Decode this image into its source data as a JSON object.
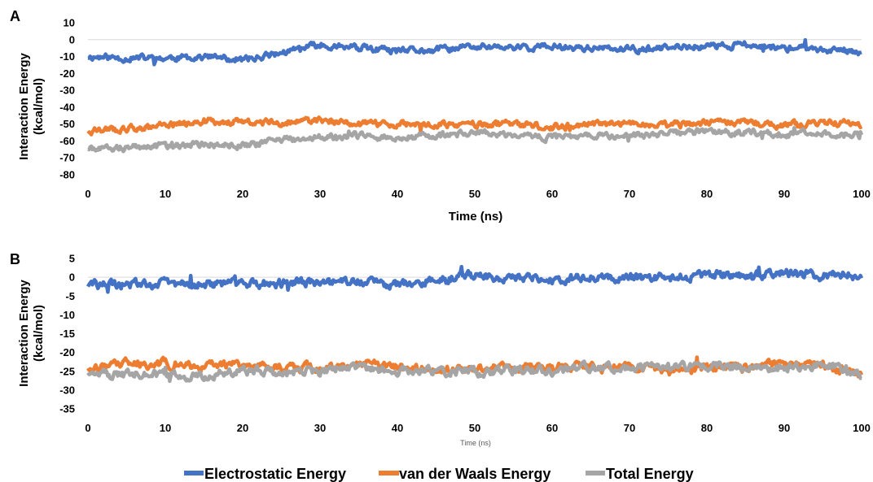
{
  "chart_data": [
    {
      "type": "line",
      "panel_label": "A",
      "xlabel": "Time (ns)",
      "ylabel": "Interaction Energy (kcal/mol)",
      "ylabel_lines": [
        "Interaction Energy",
        "(kcal/mol)"
      ],
      "xlim": [
        0,
        100
      ],
      "ylim": [
        -80,
        10
      ],
      "xticks": [
        0,
        10,
        20,
        30,
        40,
        50,
        60,
        70,
        80,
        90,
        100
      ],
      "yticks": [
        10,
        0,
        -10,
        -20,
        -30,
        -40,
        -50,
        -60,
        -70,
        -80
      ],
      "grid": false,
      "zero_line": true,
      "series": [
        {
          "name": "Electrostatic Energy",
          "color": "#4472C4",
          "x": [
            0,
            5,
            10,
            15,
            20,
            25,
            30,
            35,
            40,
            45,
            50,
            55,
            60,
            65,
            70,
            75,
            80,
            85,
            90,
            95,
            100
          ],
          "values": [
            -10,
            -11,
            -11,
            -10,
            -12,
            -8,
            -3,
            -5,
            -7,
            -6,
            -4,
            -5,
            -4,
            -5,
            -6,
            -5,
            -4,
            -3,
            -5,
            -6,
            -7
          ]
        },
        {
          "name": "van der Waals Energy",
          "color": "#ED7D31",
          "x": [
            0,
            5,
            10,
            15,
            20,
            25,
            30,
            35,
            40,
            45,
            50,
            55,
            60,
            65,
            70,
            75,
            80,
            85,
            90,
            95,
            100
          ],
          "values": [
            -54,
            -53,
            -51,
            -48,
            -49,
            -49,
            -48,
            -50,
            -50,
            -51,
            -50,
            -50,
            -52,
            -50,
            -50,
            -51,
            -49,
            -49,
            -51,
            -49,
            -50
          ]
        },
        {
          "name": "Total Energy",
          "color": "#A5A5A5",
          "x": [
            0,
            5,
            10,
            15,
            20,
            25,
            30,
            35,
            40,
            45,
            50,
            55,
            60,
            65,
            70,
            75,
            80,
            85,
            90,
            95,
            100
          ],
          "values": [
            -65,
            -64,
            -63,
            -62,
            -63,
            -59,
            -58,
            -57,
            -58,
            -57,
            -55,
            -57,
            -58,
            -56,
            -57,
            -56,
            -54,
            -55,
            -56,
            -55,
            -57
          ]
        }
      ]
    },
    {
      "type": "line",
      "panel_label": "B",
      "xlabel": "Time (ns)",
      "ylabel": "Interaction Energy (kcal/mol)",
      "ylabel_lines": [
        "Interaction Energy",
        "(kcal/mol)"
      ],
      "xlim": [
        0,
        100
      ],
      "ylim": [
        -35,
        5
      ],
      "xticks": [
        0,
        10,
        20,
        30,
        40,
        50,
        60,
        70,
        80,
        90,
        100
      ],
      "yticks": [
        5,
        0,
        -5,
        -10,
        -15,
        -20,
        -25,
        -30,
        -35
      ],
      "grid": false,
      "zero_line": true,
      "series": [
        {
          "name": "Electrostatic Energy",
          "color": "#4472C4",
          "x": [
            0,
            5,
            10,
            15,
            20,
            25,
            30,
            35,
            40,
            45,
            50,
            55,
            60,
            65,
            70,
            75,
            80,
            85,
            90,
            95,
            100
          ],
          "values": [
            -2,
            -2,
            -1.5,
            -2,
            -1.5,
            -1.5,
            -1.5,
            -1,
            -2,
            -0.5,
            0.5,
            -0.5,
            -0.5,
            0,
            0,
            0,
            0.5,
            0.5,
            1,
            0.5,
            0.5
          ]
        },
        {
          "name": "van der Waals Energy",
          "color": "#ED7D31",
          "x": [
            0,
            5,
            10,
            15,
            20,
            25,
            30,
            35,
            40,
            45,
            50,
            55,
            60,
            65,
            70,
            75,
            80,
            85,
            90,
            95,
            100
          ],
          "values": [
            -25,
            -23,
            -23,
            -24,
            -23,
            -24,
            -24,
            -23,
            -24,
            -25,
            -24,
            -24,
            -24,
            -24,
            -24,
            -25,
            -24,
            -24,
            -23,
            -23,
            -26
          ]
        },
        {
          "name": "Total Energy",
          "color": "#A5A5A5",
          "x": [
            0,
            5,
            10,
            15,
            20,
            25,
            30,
            35,
            40,
            45,
            50,
            55,
            60,
            65,
            70,
            75,
            80,
            85,
            90,
            95,
            100
          ],
          "values": [
            -26,
            -26,
            -26,
            -26,
            -25,
            -25,
            -25,
            -24,
            -25,
            -25,
            -25,
            -25,
            -25,
            -24,
            -24,
            -24,
            -24,
            -24,
            -24,
            -23,
            -26
          ]
        }
      ]
    }
  ],
  "legend": {
    "position": "bottom",
    "items": [
      {
        "label": "Electrostatic Energy",
        "color": "#4472C4"
      },
      {
        "label": "van der Waals Energy",
        "color": "#ED7D31"
      },
      {
        "label": "Total Energy",
        "color": "#A5A5A5"
      }
    ]
  }
}
